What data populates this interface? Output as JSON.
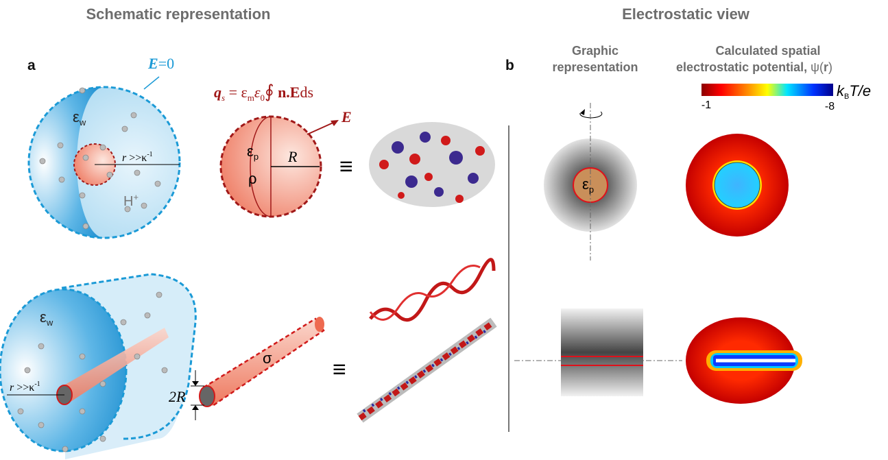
{
  "headers": {
    "left": "Schematic representation",
    "right": "Electrostatic view"
  },
  "panel_a": {
    "label": "a",
    "field": {
      "symbol": "E",
      "equals": "=0"
    },
    "solvent": {
      "symbol": "ε",
      "subscript": "w"
    },
    "debye": {
      "symbol": "r",
      "relation": " >>κ",
      "superscript": "-1"
    },
    "ion": {
      "symbol": "H",
      "superscript": "+"
    },
    "charge_equation": {
      "lhs": "q",
      "lhs_subscript": "s",
      "eq": " = ε",
      "sub_m": "m",
      "eps": "ε",
      "sub_0": "0",
      "integral": "∮",
      "body": " n.E",
      "ds": "ds"
    },
    "field_vector": "E",
    "particle": {
      "symbol": "ε",
      "subscript": "p",
      "density": "ρ",
      "radius": "R"
    },
    "equivalent": "≡",
    "cylinder_solvent": {
      "symbol": "ε",
      "subscript": "w"
    },
    "cylinder_debye": {
      "symbol": "r",
      "relation": " >>κ",
      "superscript": "-1"
    },
    "diameter": "2R",
    "surface_charge": "σ",
    "equivalent_2": "≡"
  },
  "panel_b": {
    "label": "b",
    "graphic_title": [
      "Graphic",
      "representation"
    ],
    "potential_title": [
      "Calculated spatial",
      "electrostatic potential, ",
      "ψ(",
      "r",
      ")"
    ],
    "particle": {
      "symbol": "ε",
      "subscript": "p"
    },
    "colorbar": {
      "min_label": "-1",
      "max_label": "-8",
      "unit": {
        "k": "k",
        "sub": "B",
        "rest": "T/e"
      }
    }
  }
}
